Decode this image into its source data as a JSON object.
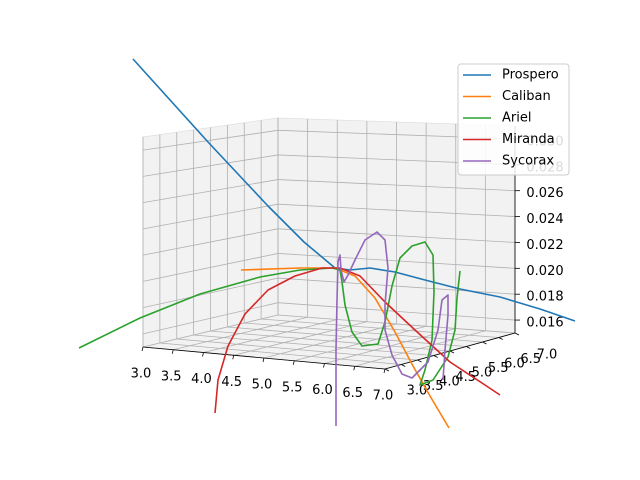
{
  "chart_data": {
    "type": "line",
    "projection": "3d",
    "grid": true,
    "legend_placement": "top-right",
    "x_ticks": [
      "3.0",
      "3.5",
      "4.0",
      "4.5",
      "5.0",
      "5.5",
      "6.0",
      "6.5",
      "7.0"
    ],
    "y_ticks": [
      "3.0",
      "3.5",
      "4.0",
      "4.5",
      "5.0",
      "5.5",
      "6.0",
      "6.5",
      "7.0"
    ],
    "z_ticks": [
      "0.016",
      "0.018",
      "0.020",
      "0.022",
      "0.024",
      "0.026",
      "0.028",
      "0.030"
    ],
    "xlim": [
      3.0,
      7.0
    ],
    "ylim": [
      3.0,
      7.0
    ],
    "zlim": [
      0.015,
      0.031
    ],
    "series": [
      {
        "name": "Prospero",
        "color": "#1f77b4"
      },
      {
        "name": "Caliban",
        "color": "#ff7f0e"
      },
      {
        "name": "Ariel",
        "color": "#2ca02c"
      },
      {
        "name": "Miranda",
        "color": "#d62728"
      },
      {
        "name": "Sycorax",
        "color": "#9467bd"
      }
    ]
  }
}
